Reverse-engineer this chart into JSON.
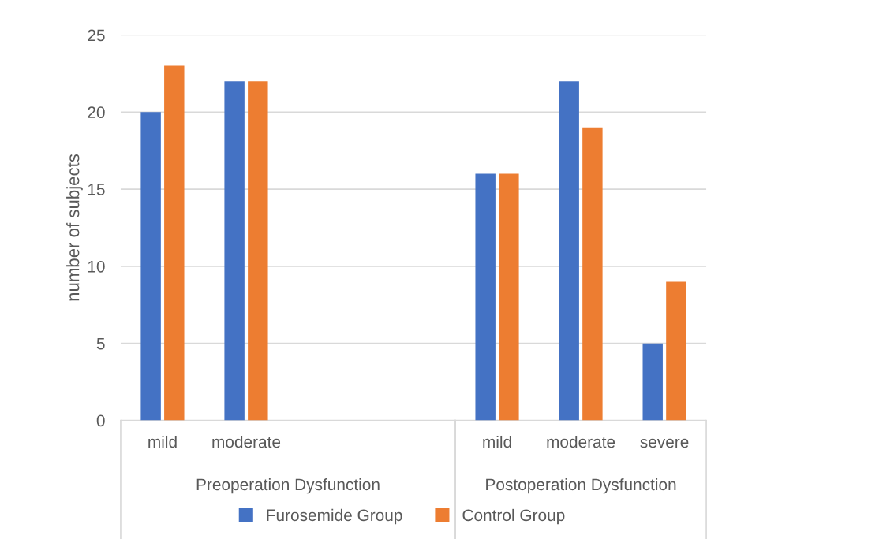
{
  "chart_data": {
    "type": "bar",
    "ylabel": "number of subjects",
    "categories": [
      "mild",
      "moderate",
      null,
      null,
      "mild",
      "moderate",
      "severe"
    ],
    "series": [
      {
        "name": "Furosemide Group",
        "color": "#4472c4",
        "values": [
          20,
          22,
          null,
          null,
          16,
          22,
          5
        ]
      },
      {
        "name": "Control Group",
        "color": "#ed7d31",
        "values": [
          23,
          22,
          null,
          null,
          16,
          19,
          9
        ]
      }
    ],
    "annotations": [
      "Preoperation Dysfunction",
      "Postoperation Dysfunction"
    ],
    "ylim": [
      0,
      25
    ],
    "yticks": [
      0,
      5,
      10,
      15,
      20,
      25
    ],
    "grid": "y",
    "legend": "bottom"
  }
}
